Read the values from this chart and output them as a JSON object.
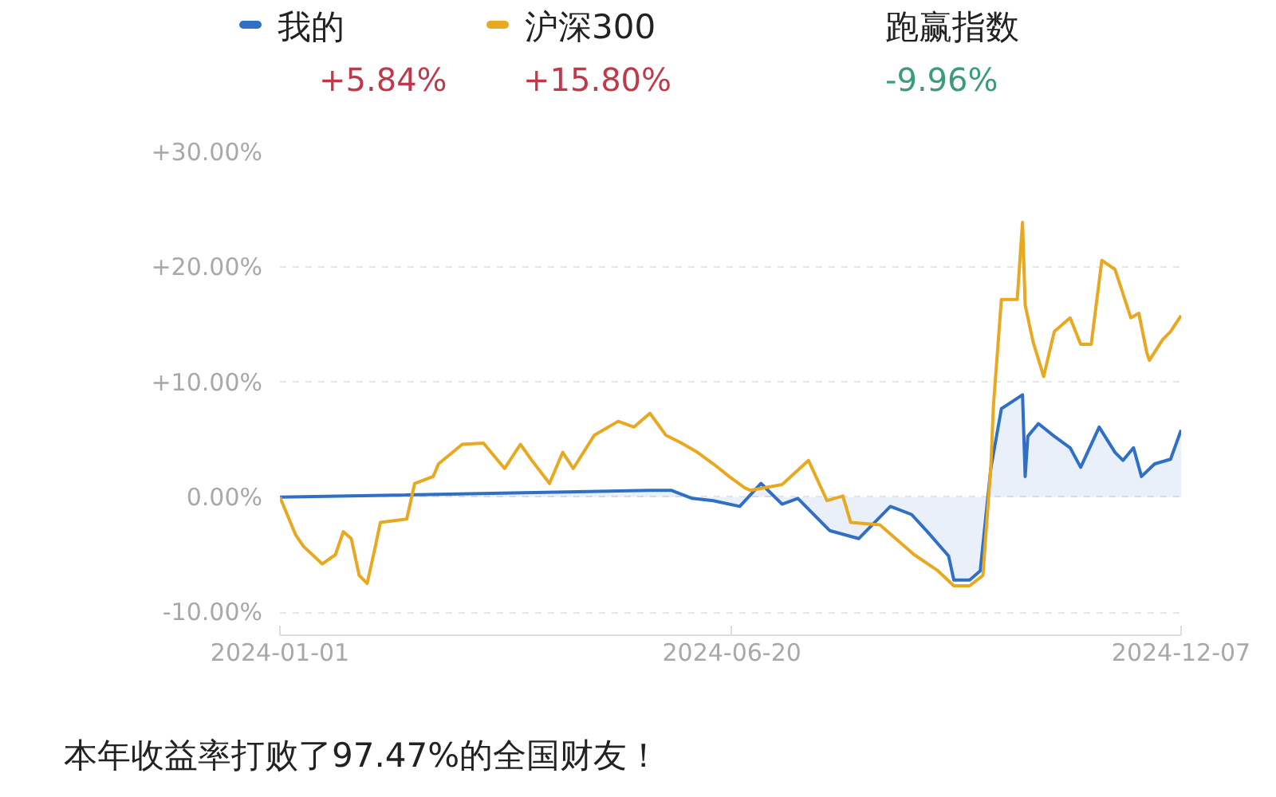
{
  "chart_data": {
    "type": "line",
    "xlim": [
      "2024-01-01",
      "2024-12-07"
    ],
    "xticks": [
      {
        "value": "2024-01-01",
        "label": "2024-01-01"
      },
      {
        "value": "2024-06-20",
        "label": "2024-06-20"
      },
      {
        "value": "2024-12-07",
        "label": "2024-12-07"
      }
    ],
    "ylim": [
      -12,
      30
    ],
    "yticks": [
      {
        "value": -10,
        "label": "-10.00%"
      },
      {
        "value": 0,
        "label": "0.00%"
      },
      {
        "value": 10,
        "label": "+10.00%"
      },
      {
        "value": 20,
        "label": "+20.00%"
      },
      {
        "value": 30,
        "label": "+30.00%"
      }
    ],
    "grid": "y",
    "legend": "top",
    "series": [
      {
        "name": "我的",
        "type": "area",
        "color": "#2f6fc6",
        "x": [
          "2024-01-01",
          "2024-05-20",
          "2024-05-28",
          "2024-06-05",
          "2024-06-13",
          "2024-06-23",
          "2024-07-01",
          "2024-07-09",
          "2024-07-15",
          "2024-07-27",
          "2024-08-07",
          "2024-08-19",
          "2024-08-27",
          "2024-09-02",
          "2024-09-10",
          "2024-09-12",
          "2024-09-18",
          "2024-09-22",
          "2024-09-26",
          "2024-09-30",
          "2024-10-08",
          "2024-10-09",
          "2024-10-10",
          "2024-10-14",
          "2024-10-20",
          "2024-10-26",
          "2024-10-30",
          "2024-11-06",
          "2024-11-12",
          "2024-11-15",
          "2024-11-19",
          "2024-11-22",
          "2024-11-27",
          "2024-12-03",
          "2024-12-07"
        ],
        "values": [
          0,
          0.6,
          0.6,
          -0.1,
          -0.3,
          -0.8,
          1.2,
          -0.6,
          -0.1,
          -2.9,
          -3.6,
          -0.8,
          -1.5,
          -3.0,
          -5.1,
          -7.2,
          -7.2,
          -6.4,
          2.5,
          7.7,
          8.9,
          1.8,
          5.3,
          6.4,
          5.3,
          4.3,
          2.6,
          6.1,
          3.9,
          3.2,
          4.3,
          1.8,
          2.9,
          3.3,
          5.84
        ]
      },
      {
        "name": "沪深300",
        "color": "#e8a820",
        "x": [
          "2024-01-01",
          "2024-01-07",
          "2024-01-10",
          "2024-01-17",
          "2024-01-22",
          "2024-01-25",
          "2024-01-28",
          "2024-01-31",
          "2024-02-03",
          "2024-02-06",
          "2024-02-08",
          "2024-02-18",
          "2024-02-21",
          "2024-02-28",
          "2024-03-01",
          "2024-03-10",
          "2024-03-18",
          "2024-03-26",
          "2024-04-01",
          "2024-04-05",
          "2024-04-12",
          "2024-04-17",
          "2024-04-21",
          "2024-04-29",
          "2024-05-08",
          "2024-05-14",
          "2024-05-20",
          "2024-05-26",
          "2024-06-01",
          "2024-06-07",
          "2024-06-13",
          "2024-06-19",
          "2024-06-25",
          "2024-06-27",
          "2024-07-09",
          "2024-07-19",
          "2024-07-26",
          "2024-08-01",
          "2024-08-04",
          "2024-08-15",
          "2024-08-28",
          "2024-09-06",
          "2024-09-12",
          "2024-09-18",
          "2024-09-23",
          "2024-09-26",
          "2024-09-27",
          "2024-09-30",
          "2024-10-06",
          "2024-10-08",
          "2024-10-09",
          "2024-10-12",
          "2024-10-16",
          "2024-10-20",
          "2024-10-26",
          "2024-10-30",
          "2024-11-03",
          "2024-11-07",
          "2024-11-12",
          "2024-11-18",
          "2024-11-21",
          "2024-11-24",
          "2024-11-25",
          "2024-11-30",
          "2024-12-03",
          "2024-12-07"
        ],
        "values": [
          0,
          -3.3,
          -4.3,
          -5.8,
          -5.0,
          -3.0,
          -3.6,
          -6.8,
          -7.5,
          -4.4,
          -2.2,
          -1.9,
          1.2,
          1.8,
          2.9,
          4.6,
          4.7,
          2.5,
          4.6,
          3.3,
          1.2,
          3.9,
          2.5,
          5.4,
          6.6,
          6.1,
          7.3,
          5.4,
          4.7,
          3.9,
          2.9,
          1.8,
          0.8,
          0.6,
          1.1,
          3.2,
          -0.3,
          0.1,
          -2.2,
          -2.4,
          -5.0,
          -6.4,
          -7.7,
          -7.7,
          -6.8,
          2.6,
          8.0,
          17.2,
          17.2,
          23.9,
          16.7,
          13.5,
          10.5,
          14.4,
          15.6,
          13.3,
          13.3,
          20.6,
          19.8,
          15.6,
          16.0,
          12.6,
          11.9,
          13.7,
          14.4,
          15.8
        ]
      }
    ],
    "annotations": [
      "+5.84%",
      "+15.80%",
      "跑赢指数",
      "-9.96%",
      "本年收益率打败了97.47%的全国财友！"
    ]
  }
}
